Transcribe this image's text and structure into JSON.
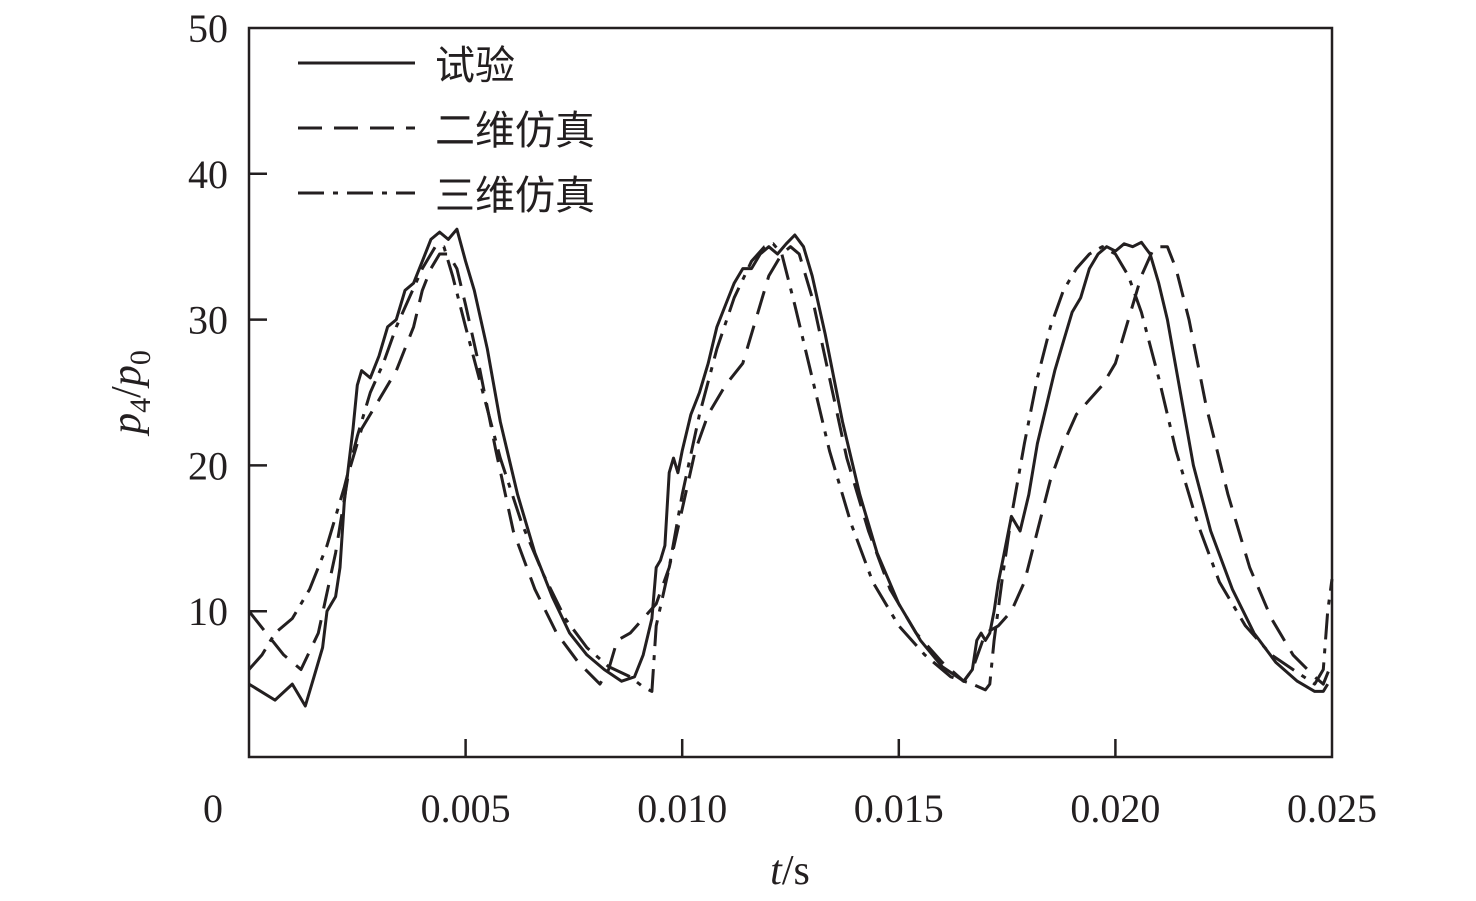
{
  "chart_data": {
    "type": "line",
    "xlabel": {
      "var": "t",
      "unit": "/s"
    },
    "ylabel": {
      "var": "p",
      "sub1": "4",
      "sep": "/",
      "var2": "p",
      "sub2": "0"
    },
    "x_ticks": [
      "0",
      "0.005",
      "0.010",
      "0.015",
      "0.020",
      "0.025"
    ],
    "x_tick_values": [
      0,
      0.005,
      0.01,
      0.015,
      0.02,
      0.025
    ],
    "y_ticks": [
      "10",
      "20",
      "30",
      "40",
      "50"
    ],
    "y_tick_values": [
      10,
      20,
      30,
      40,
      50
    ],
    "xlim": [
      0,
      0.025
    ],
    "ylim": [
      0,
      50
    ],
    "grid": false,
    "legend_position": "top-left",
    "colors": {
      "line": "#231f20"
    },
    "series": [
      {
        "name": "试验",
        "style": "solid",
        "points": [
          [
            0.0,
            5.0
          ],
          [
            0.0006,
            3.9
          ],
          [
            0.001,
            5.0
          ],
          [
            0.0013,
            3.5
          ],
          [
            0.0015,
            5.5
          ],
          [
            0.0017,
            7.5
          ],
          [
            0.0018,
            10.0
          ],
          [
            0.0019,
            10.5
          ],
          [
            0.002,
            11.0
          ],
          [
            0.0021,
            13.0
          ],
          [
            0.0022,
            17.5
          ],
          [
            0.0023,
            20.0
          ],
          [
            0.0024,
            22.5
          ],
          [
            0.0025,
            25.5
          ],
          [
            0.0026,
            26.5
          ],
          [
            0.0028,
            26.0
          ],
          [
            0.003,
            27.5
          ],
          [
            0.0032,
            29.5
          ],
          [
            0.0034,
            30.0
          ],
          [
            0.0036,
            32.0
          ],
          [
            0.0038,
            32.5
          ],
          [
            0.004,
            34.0
          ],
          [
            0.0042,
            35.5
          ],
          [
            0.0044,
            36.0
          ],
          [
            0.0046,
            35.5
          ],
          [
            0.0048,
            36.2
          ],
          [
            0.005,
            34.0
          ],
          [
            0.0052,
            32.0
          ],
          [
            0.0055,
            28.0
          ],
          [
            0.0058,
            23.0
          ],
          [
            0.0062,
            18.0
          ],
          [
            0.0066,
            14.0
          ],
          [
            0.007,
            11.0
          ],
          [
            0.0074,
            8.5
          ],
          [
            0.0078,
            7.0
          ],
          [
            0.0082,
            6.0
          ],
          [
            0.0086,
            5.2
          ],
          [
            0.0089,
            5.5
          ],
          [
            0.0091,
            7.0
          ],
          [
            0.0093,
            9.5
          ],
          [
            0.0094,
            13.0
          ],
          [
            0.0095,
            13.5
          ],
          [
            0.0096,
            14.5
          ],
          [
            0.0097,
            19.5
          ],
          [
            0.0098,
            20.5
          ],
          [
            0.0099,
            19.5
          ],
          [
            0.01,
            21.0
          ],
          [
            0.0102,
            23.5
          ],
          [
            0.0104,
            25.0
          ],
          [
            0.0106,
            27.0
          ],
          [
            0.0108,
            29.5
          ],
          [
            0.011,
            31.0
          ],
          [
            0.0112,
            32.5
          ],
          [
            0.0114,
            33.5
          ],
          [
            0.0116,
            33.5
          ],
          [
            0.0118,
            34.5
          ],
          [
            0.012,
            35.0
          ],
          [
            0.0122,
            34.5
          ],
          [
            0.0124,
            35.2
          ],
          [
            0.0126,
            35.8
          ],
          [
            0.0128,
            35.0
          ],
          [
            0.013,
            33.0
          ],
          [
            0.0133,
            29.0
          ],
          [
            0.0137,
            23.0
          ],
          [
            0.0141,
            18.0
          ],
          [
            0.0145,
            14.0
          ],
          [
            0.015,
            10.5
          ],
          [
            0.0155,
            8.0
          ],
          [
            0.016,
            6.2
          ],
          [
            0.0165,
            5.2
          ],
          [
            0.0167,
            6.0
          ],
          [
            0.0168,
            8.0
          ],
          [
            0.0169,
            8.5
          ],
          [
            0.017,
            8.0
          ],
          [
            0.0171,
            8.5
          ],
          [
            0.0172,
            10.0
          ],
          [
            0.0173,
            12.0
          ],
          [
            0.0174,
            13.5
          ],
          [
            0.0176,
            16.5
          ],
          [
            0.0178,
            15.5
          ],
          [
            0.018,
            18.0
          ],
          [
            0.0182,
            21.5
          ],
          [
            0.0184,
            24.0
          ],
          [
            0.0186,
            26.5
          ],
          [
            0.0188,
            28.5
          ],
          [
            0.019,
            30.5
          ],
          [
            0.0192,
            31.5
          ],
          [
            0.0194,
            33.5
          ],
          [
            0.0196,
            34.5
          ],
          [
            0.0198,
            35.0
          ],
          [
            0.02,
            34.7
          ],
          [
            0.0202,
            35.2
          ],
          [
            0.0204,
            35.0
          ],
          [
            0.0206,
            35.3
          ],
          [
            0.0208,
            34.5
          ],
          [
            0.021,
            32.5
          ],
          [
            0.0212,
            30.0
          ],
          [
            0.0215,
            25.0
          ],
          [
            0.0218,
            20.0
          ],
          [
            0.0222,
            15.5
          ],
          [
            0.0227,
            11.5
          ],
          [
            0.0232,
            8.5
          ],
          [
            0.0237,
            6.5
          ],
          [
            0.0242,
            5.2
          ],
          [
            0.0246,
            4.5
          ],
          [
            0.0248,
            4.5
          ],
          [
            0.0249,
            5.0
          ]
        ]
      },
      {
        "name": "二维仿真",
        "style": "dashed",
        "points": [
          [
            0.0,
            10.0
          ],
          [
            0.0004,
            8.5
          ],
          [
            0.0008,
            7.0
          ],
          [
            0.0012,
            6.0
          ],
          [
            0.0016,
            8.5
          ],
          [
            0.002,
            14.0
          ],
          [
            0.0023,
            19.5
          ],
          [
            0.0026,
            22.5
          ],
          [
            0.003,
            24.5
          ],
          [
            0.0034,
            26.5
          ],
          [
            0.0038,
            29.5
          ],
          [
            0.004,
            32.0
          ],
          [
            0.0042,
            33.5
          ],
          [
            0.0044,
            34.5
          ],
          [
            0.0046,
            34.5
          ],
          [
            0.0048,
            33.5
          ],
          [
            0.005,
            31.0
          ],
          [
            0.0053,
            27.0
          ],
          [
            0.0057,
            21.0
          ],
          [
            0.0061,
            15.5
          ],
          [
            0.0066,
            11.5
          ],
          [
            0.0071,
            8.5
          ],
          [
            0.0076,
            6.5
          ],
          [
            0.0081,
            5.0
          ],
          [
            0.0083,
            6.0
          ],
          [
            0.0085,
            8.0
          ],
          [
            0.0088,
            8.5
          ],
          [
            0.0091,
            9.5
          ],
          [
            0.0094,
            10.5
          ],
          [
            0.0097,
            13.0
          ],
          [
            0.01,
            17.0
          ],
          [
            0.0103,
            21.0
          ],
          [
            0.0106,
            23.5
          ],
          [
            0.011,
            25.5
          ],
          [
            0.0114,
            27.0
          ],
          [
            0.0117,
            30.0
          ],
          [
            0.012,
            33.0
          ],
          [
            0.0123,
            34.5
          ],
          [
            0.0125,
            35.0
          ],
          [
            0.0127,
            34.5
          ],
          [
            0.013,
            31.5
          ],
          [
            0.0134,
            26.0
          ],
          [
            0.0138,
            20.5
          ],
          [
            0.0143,
            15.5
          ],
          [
            0.0148,
            11.5
          ],
          [
            0.0154,
            8.5
          ],
          [
            0.016,
            6.5
          ],
          [
            0.0165,
            5.2
          ],
          [
            0.0167,
            6.0
          ],
          [
            0.017,
            8.5
          ],
          [
            0.0173,
            9.0
          ],
          [
            0.0176,
            10.0
          ],
          [
            0.0179,
            12.0
          ],
          [
            0.0182,
            15.5
          ],
          [
            0.0185,
            19.0
          ],
          [
            0.0188,
            21.5
          ],
          [
            0.0191,
            23.5
          ],
          [
            0.0194,
            24.5
          ],
          [
            0.0197,
            25.5
          ],
          [
            0.02,
            27.0
          ],
          [
            0.0203,
            30.0
          ],
          [
            0.0206,
            33.0
          ],
          [
            0.0209,
            35.0
          ],
          [
            0.0212,
            35.0
          ],
          [
            0.0214,
            33.5
          ],
          [
            0.0217,
            30.0
          ],
          [
            0.0221,
            24.0
          ],
          [
            0.0226,
            18.0
          ],
          [
            0.0231,
            13.0
          ],
          [
            0.0236,
            9.5
          ],
          [
            0.0241,
            7.0
          ],
          [
            0.0246,
            5.5
          ],
          [
            0.0248,
            5.0
          ],
          [
            0.025,
            6.5
          ]
        ]
      },
      {
        "name": "三维仿真",
        "style": "dashdot",
        "points": [
          [
            0.0,
            6.0
          ],
          [
            0.0003,
            7.0
          ],
          [
            0.0006,
            8.5
          ],
          [
            0.001,
            9.5
          ],
          [
            0.0014,
            11.5
          ],
          [
            0.0018,
            14.5
          ],
          [
            0.0022,
            18.5
          ],
          [
            0.0025,
            22.0
          ],
          [
            0.0028,
            25.0
          ],
          [
            0.0031,
            27.0
          ],
          [
            0.0034,
            29.5
          ],
          [
            0.0037,
            31.5
          ],
          [
            0.004,
            33.5
          ],
          [
            0.0043,
            35.0
          ],
          [
            0.0045,
            35.0
          ],
          [
            0.0047,
            33.0
          ],
          [
            0.005,
            29.5
          ],
          [
            0.0054,
            25.0
          ],
          [
            0.0058,
            20.5
          ],
          [
            0.0063,
            16.0
          ],
          [
            0.0068,
            12.5
          ],
          [
            0.0073,
            9.5
          ],
          [
            0.0078,
            7.5
          ],
          [
            0.0083,
            6.2
          ],
          [
            0.0088,
            5.5
          ],
          [
            0.0091,
            4.8
          ],
          [
            0.0093,
            4.5
          ],
          [
            0.0094,
            9.0
          ],
          [
            0.0097,
            13.0
          ],
          [
            0.01,
            18.0
          ],
          [
            0.0104,
            23.5
          ],
          [
            0.0108,
            28.0
          ],
          [
            0.0112,
            31.5
          ],
          [
            0.0116,
            34.0
          ],
          [
            0.0119,
            35.0
          ],
          [
            0.0121,
            35.2
          ],
          [
            0.0123,
            34.5
          ],
          [
            0.0126,
            31.0
          ],
          [
            0.013,
            26.0
          ],
          [
            0.0134,
            21.0
          ],
          [
            0.0139,
            16.0
          ],
          [
            0.0144,
            12.0
          ],
          [
            0.015,
            9.0
          ],
          [
            0.0156,
            7.0
          ],
          [
            0.0162,
            5.5
          ],
          [
            0.0167,
            5.0
          ],
          [
            0.017,
            4.6
          ],
          [
            0.0171,
            5.0
          ],
          [
            0.0172,
            8.0
          ],
          [
            0.0174,
            12.5
          ],
          [
            0.0176,
            16.5
          ],
          [
            0.0179,
            21.5
          ],
          [
            0.0182,
            26.0
          ],
          [
            0.0185,
            29.5
          ],
          [
            0.0188,
            32.0
          ],
          [
            0.0191,
            33.5
          ],
          [
            0.0194,
            34.5
          ],
          [
            0.0197,
            35.0
          ],
          [
            0.02,
            34.5
          ],
          [
            0.0203,
            33.0
          ],
          [
            0.0206,
            30.5
          ],
          [
            0.021,
            26.0
          ],
          [
            0.0214,
            21.0
          ],
          [
            0.0219,
            16.0
          ],
          [
            0.0224,
            12.0
          ],
          [
            0.023,
            9.0
          ],
          [
            0.0236,
            7.0
          ],
          [
            0.0242,
            5.8
          ],
          [
            0.0246,
            5.0
          ],
          [
            0.0248,
            6.0
          ],
          [
            0.0249,
            10.0
          ],
          [
            0.025,
            12.2
          ]
        ]
      }
    ]
  }
}
